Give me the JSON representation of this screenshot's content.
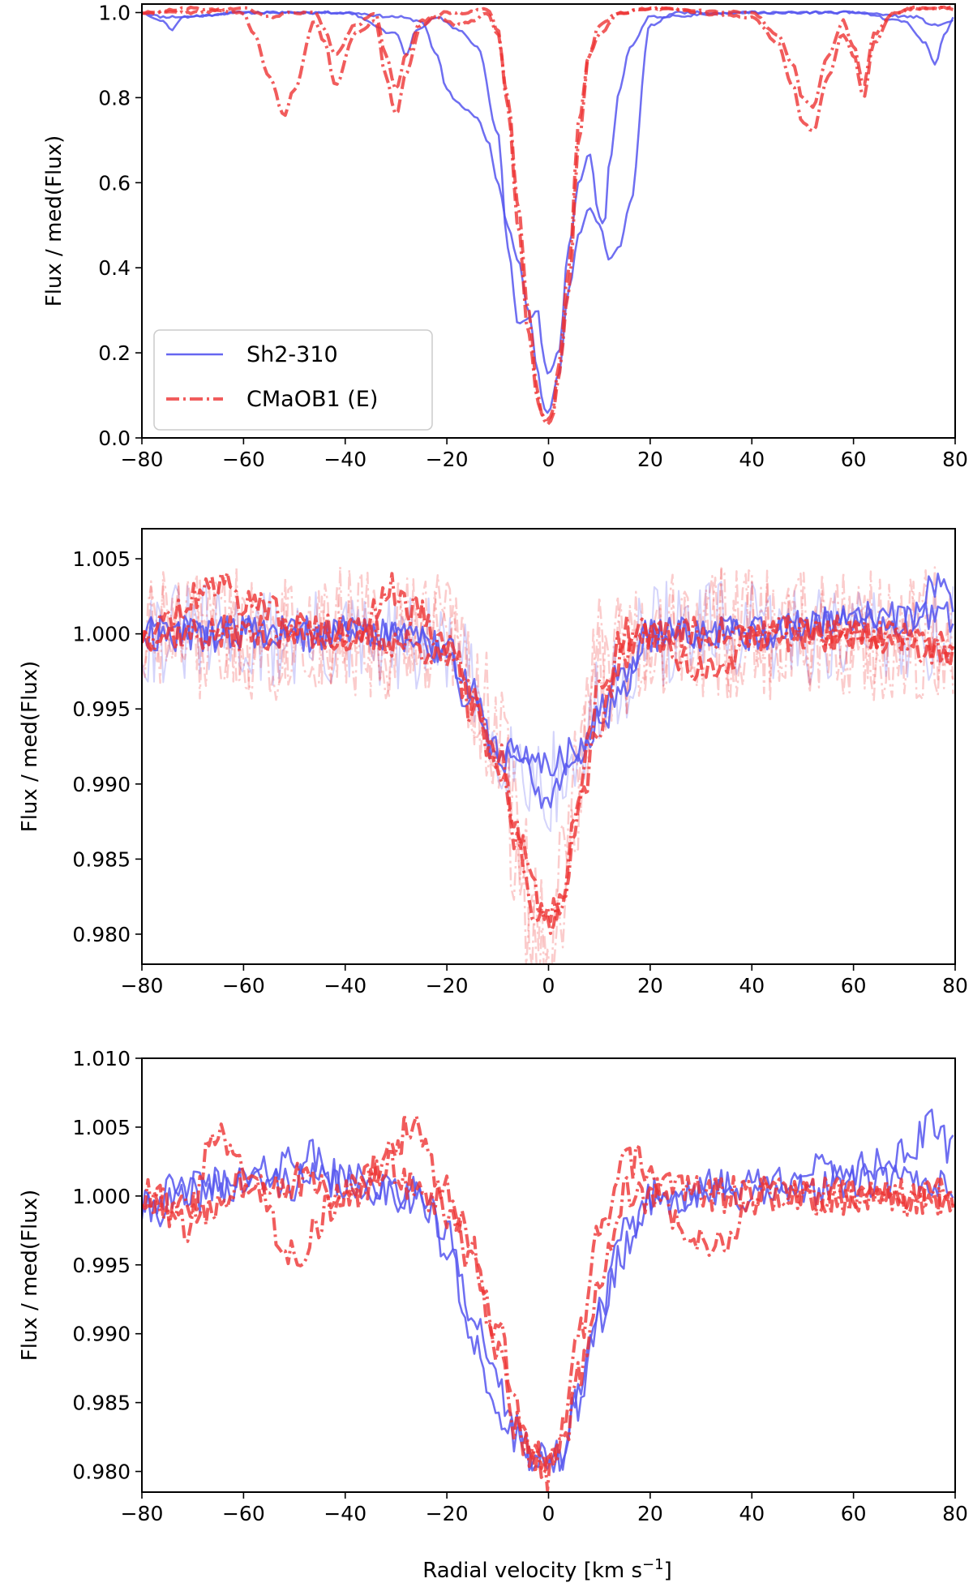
{
  "figure": {
    "xlabel_prefix": "Radial velocity [km s",
    "xlabel_sup": "−1",
    "xlabel_suffix": "]"
  },
  "colors": {
    "sh2_310": "#5555ee",
    "cmaob1": "#ee3333",
    "background": "#ffffff",
    "axes": "#000000"
  },
  "legend": {
    "location": "lower-left of top panel",
    "entries": [
      {
        "label": "Sh2-310",
        "style": "solid",
        "color": "#5555ee"
      },
      {
        "label": "CMaOB1 (E)",
        "style": "dash-dot",
        "color": "#ee3333"
      }
    ]
  },
  "chart_data": [
    {
      "type": "line",
      "panel": "top",
      "title": "",
      "xlabel": "",
      "ylabel": "Flux / med(Flux)",
      "xlim": [
        -80,
        80
      ],
      "ylim": [
        0.0,
        1.02
      ],
      "xticks": [
        -80,
        -60,
        -40,
        -20,
        0,
        20,
        40,
        60,
        80
      ],
      "xtick_labels": [
        "−80",
        "−60",
        "−40",
        "−20",
        "0",
        "20",
        "40",
        "60",
        "80"
      ],
      "yticks": [
        0.0,
        0.2,
        0.4,
        0.6,
        0.8,
        1.0
      ],
      "ytick_labels": [
        "0.0",
        "0.2",
        "0.4",
        "0.6",
        "0.8",
        "1.0"
      ],
      "grid": false,
      "legend": true,
      "series": [
        {
          "name": "Sh2-310",
          "color": "#5555ee",
          "style": "solid",
          "noise": 0.003,
          "seed": 11,
          "x": [
            -80,
            -76,
            -72,
            -60,
            -40,
            -30,
            -25,
            -22,
            -20,
            -18,
            -16,
            -14,
            -12,
            -10,
            -8,
            -6,
            -4,
            -2,
            -1,
            0,
            2,
            4,
            6,
            8,
            10,
            12,
            14,
            16,
            20,
            25,
            40,
            60,
            72,
            76,
            80
          ],
          "y": [
            1.0,
            0.99,
            0.99,
            1.0,
            1.0,
            0.99,
            0.98,
            0.9,
            0.82,
            0.79,
            0.77,
            0.75,
            0.7,
            0.6,
            0.5,
            0.42,
            0.3,
            0.15,
            0.07,
            0.06,
            0.15,
            0.35,
            0.48,
            0.54,
            0.5,
            0.42,
            0.45,
            0.55,
            0.97,
            1.0,
            1.0,
            1.0,
            0.99,
            0.97,
            0.98
          ]
        },
        {
          "name": "Sh2-310",
          "color": "#5555ee",
          "style": "solid",
          "noise": 0.003,
          "seed": 12,
          "x": [
            -80,
            -76,
            -74,
            -72,
            -60,
            -40,
            -30,
            -28,
            -26,
            -22,
            -18,
            -14,
            -10,
            -8,
            -6,
            -4,
            -2,
            -1,
            0,
            2,
            4,
            6,
            8,
            10,
            11,
            12,
            14,
            16,
            20,
            40,
            60,
            70,
            74,
            76,
            78,
            80
          ],
          "y": [
            1.0,
            0.98,
            0.96,
            0.99,
            1.0,
            1.0,
            0.95,
            0.9,
            0.96,
            0.99,
            0.96,
            0.92,
            0.72,
            0.45,
            0.27,
            0.28,
            0.3,
            0.18,
            0.15,
            0.2,
            0.45,
            0.6,
            0.67,
            0.52,
            0.5,
            0.65,
            0.82,
            0.92,
            0.99,
            1.0,
            1.0,
            0.98,
            0.93,
            0.88,
            0.95,
            0.99
          ]
        },
        {
          "name": "CMaOB1 (E)",
          "color": "#ee3333",
          "style": "dashdot",
          "noise": 0.003,
          "seed": 21,
          "x": [
            -80,
            -70,
            -60,
            -58,
            -55,
            -52,
            -50,
            -46,
            -44,
            -42,
            -38,
            -34,
            -32,
            -30,
            -28,
            -25,
            -22,
            -20,
            -18,
            -15,
            -12,
            -10,
            -8,
            -6,
            -4,
            -2,
            -1,
            0,
            1,
            2,
            4,
            6,
            8,
            10,
            14,
            20,
            40,
            45,
            48,
            50,
            52,
            55,
            58,
            60,
            62,
            64,
            68,
            72,
            80
          ],
          "y": [
            1.0,
            1.01,
            1.0,
            0.95,
            0.85,
            0.76,
            0.82,
            0.98,
            0.93,
            0.83,
            0.95,
            0.98,
            0.85,
            0.76,
            0.86,
            0.97,
            0.99,
            0.98,
            0.97,
            0.98,
            1.0,
            0.95,
            0.8,
            0.55,
            0.3,
            0.1,
            0.04,
            0.03,
            0.06,
            0.15,
            0.35,
            0.7,
            0.9,
            0.95,
            1.0,
            1.01,
            0.99,
            0.93,
            0.83,
            0.74,
            0.72,
            0.85,
            0.95,
            0.9,
            0.8,
            0.93,
            1.0,
            1.01,
            1.01
          ]
        },
        {
          "name": "CMaOB1 (E)",
          "color": "#ee3333",
          "style": "dashdot",
          "noise": 0.003,
          "seed": 22,
          "x": [
            -80,
            -70,
            -60,
            -55,
            -50,
            -46,
            -44,
            -42,
            -38,
            -34,
            -32,
            -30,
            -28,
            -25,
            -20,
            -16,
            -12,
            -10,
            -8,
            -6,
            -4,
            -2,
            -1,
            0,
            1,
            2,
            4,
            6,
            8,
            10,
            14,
            20,
            40,
            45,
            48,
            50,
            52,
            55,
            58,
            60,
            62,
            64,
            68,
            72,
            80
          ],
          "y": [
            1.0,
            1.0,
            1.01,
            0.99,
            1.0,
            1.0,
            0.96,
            0.9,
            0.97,
            1.0,
            0.9,
            0.82,
            0.9,
            0.98,
            1.0,
            1.0,
            1.01,
            0.96,
            0.78,
            0.5,
            0.25,
            0.08,
            0.05,
            0.04,
            0.07,
            0.18,
            0.4,
            0.75,
            0.9,
            0.97,
            1.0,
            1.01,
            1.0,
            0.95,
            0.88,
            0.8,
            0.78,
            0.9,
            0.98,
            0.92,
            0.83,
            0.95,
            1.0,
            1.01,
            1.01
          ]
        }
      ]
    },
    {
      "type": "line",
      "panel": "middle",
      "title": "",
      "xlabel": "",
      "ylabel": "Flux / med(Flux)",
      "xlim": [
        -80,
        80
      ],
      "ylim": [
        0.978,
        1.007
      ],
      "xticks": [
        -80,
        -60,
        -40,
        -20,
        0,
        20,
        40,
        60,
        80
      ],
      "xtick_labels": [
        "−80",
        "−60",
        "−40",
        "−20",
        "0",
        "20",
        "40",
        "60",
        "80"
      ],
      "yticks": [
        0.98,
        0.985,
        0.99,
        0.995,
        1.0,
        1.005
      ],
      "ytick_labels": [
        "0.980",
        "0.985",
        "0.990",
        "0.995",
        "1.000",
        "1.005"
      ],
      "grid": false,
      "legend": false,
      "series": [
        {
          "name": "Sh2-310",
          "color": "#5555ee",
          "style": "solid",
          "opacity": 0.25,
          "width": 2,
          "noise": 0.0035,
          "seed": 31,
          "x": [
            -80,
            -20,
            -10,
            -5,
            0,
            5,
            10,
            20,
            80
          ],
          "y": [
            1.0,
            0.999,
            0.993,
            0.991,
            0.99,
            0.991,
            0.995,
            1.0,
            1.0
          ]
        },
        {
          "name": "CMaOB1 (E)",
          "color": "#ee3333",
          "style": "dashdot",
          "opacity": 0.25,
          "width": 2.5,
          "noise": 0.0045,
          "seed": 32,
          "x": [
            -80,
            -20,
            -10,
            -6,
            -3,
            0,
            3,
            6,
            10,
            20,
            80
          ],
          "y": [
            1.0,
            1.0,
            0.993,
            0.985,
            0.979,
            0.979,
            0.983,
            0.99,
            0.998,
            1.0,
            1.0
          ]
        },
        {
          "name": "CMaOB1 (E)",
          "color": "#ee3333",
          "style": "dashdot",
          "opacity": 0.25,
          "width": 2.5,
          "noise": 0.0045,
          "seed": 33,
          "x": [
            -80,
            -20,
            -10,
            -6,
            -3,
            0,
            3,
            6,
            10,
            20,
            80
          ],
          "y": [
            1.0,
            1.0,
            0.994,
            0.987,
            0.981,
            0.98,
            0.984,
            0.991,
            0.998,
            1.0,
            1.0
          ]
        },
        {
          "name": "Sh2-310",
          "color": "#5555ee",
          "style": "solid",
          "noise": 0.0012,
          "seed": 34,
          "x": [
            -80,
            -30,
            -20,
            -15,
            -10,
            -5,
            0,
            5,
            10,
            15,
            20,
            40,
            60,
            70,
            76,
            80
          ],
          "y": [
            1.0,
            1.0,
            0.999,
            0.996,
            0.992,
            0.991,
            0.989,
            0.991,
            0.994,
            0.997,
            1.0,
            1.0,
            1.001,
            1.001,
            1.003,
            1.002
          ]
        },
        {
          "name": "Sh2-310",
          "color": "#5555ee",
          "style": "solid",
          "noise": 0.0012,
          "seed": 35,
          "x": [
            -80,
            -30,
            -20,
            -15,
            -10,
            -5,
            0,
            5,
            10,
            15,
            20,
            40,
            60,
            80
          ],
          "y": [
            1.0,
            1.0,
            0.999,
            0.995,
            0.992,
            0.992,
            0.991,
            0.992,
            0.995,
            0.998,
            1.0,
            1.0,
            1.001,
            1.001
          ]
        },
        {
          "name": "CMaOB1 (E)",
          "color": "#ee3333",
          "style": "dashdot",
          "noise": 0.0012,
          "seed": 36,
          "x": [
            -80,
            -66,
            -64,
            -60,
            -40,
            -30,
            -25,
            -20,
            -15,
            -10,
            -6,
            -3,
            0,
            3,
            6,
            10,
            15,
            20,
            28,
            34,
            40,
            60,
            80
          ],
          "y": [
            1.0,
            1.003,
            1.004,
            1.002,
            1.0,
            1.003,
            1.001,
            0.999,
            0.996,
            0.992,
            0.987,
            0.983,
            0.981,
            0.983,
            0.988,
            0.994,
            0.999,
            1.0,
            0.998,
            0.997,
            1.0,
            1.0,
            0.999
          ]
        },
        {
          "name": "CMaOB1 (E)",
          "color": "#ee3333",
          "style": "dashdot",
          "noise": 0.0012,
          "seed": 37,
          "x": [
            -80,
            -60,
            -40,
            -20,
            -15,
            -10,
            -6,
            -3,
            0,
            3,
            6,
            10,
            15,
            20,
            40,
            60,
            80
          ],
          "y": [
            1.0,
            1.0,
            1.0,
            0.999,
            0.995,
            0.991,
            0.986,
            0.982,
            0.98,
            0.983,
            0.99,
            0.996,
            1.0,
            1.0,
            1.0,
            1.0,
            0.999
          ]
        }
      ]
    },
    {
      "type": "line",
      "panel": "bottom",
      "title": "",
      "xlabel": "Radial velocity [km s−1]",
      "ylabel": "Flux / med(Flux)",
      "xlim": [
        -80,
        80
      ],
      "ylim": [
        0.9785,
        1.01
      ],
      "xticks": [
        -80,
        -60,
        -40,
        -20,
        0,
        20,
        40,
        60,
        80
      ],
      "xtick_labels": [
        "−80",
        "−60",
        "−40",
        "−20",
        "0",
        "20",
        "40",
        "60",
        "80"
      ],
      "yticks": [
        0.98,
        0.985,
        0.99,
        0.995,
        1.0,
        1.005,
        1.01
      ],
      "ytick_labels": [
        "0.980",
        "0.985",
        "0.990",
        "0.995",
        "1.000",
        "1.005",
        "1.010"
      ],
      "grid": false,
      "legend": false,
      "series": [
        {
          "name": "Sh2-310",
          "color": "#5555ee",
          "style": "solid",
          "noise": 0.0014,
          "seed": 41,
          "x": [
            -80,
            -60,
            -40,
            -25,
            -20,
            -15,
            -10,
            -6,
            -2,
            0,
            2,
            6,
            10,
            15,
            20,
            40,
            60,
            70,
            76,
            80
          ],
          "y": [
            0.999,
            1.001,
            1.001,
            1.0,
            0.997,
            0.992,
            0.986,
            0.983,
            0.981,
            0.98,
            0.981,
            0.986,
            0.991,
            0.996,
            1.0,
            1.001,
            1.002,
            1.003,
            1.005,
            1.003
          ]
        },
        {
          "name": "Sh2-310",
          "color": "#5555ee",
          "style": "solid",
          "noise": 0.0014,
          "seed": 42,
          "x": [
            -80,
            -60,
            -48,
            -40,
            -25,
            -20,
            -15,
            -10,
            -6,
            -2,
            0,
            2,
            6,
            10,
            15,
            20,
            40,
            60,
            80
          ],
          "y": [
            1.0,
            1.001,
            1.003,
            1.001,
            1.0,
            0.996,
            0.99,
            0.984,
            0.982,
            0.981,
            0.98,
            0.981,
            0.985,
            0.992,
            0.997,
            1.0,
            1.0,
            1.001,
            1.001
          ]
        },
        {
          "name": "CMaOB1 (E)",
          "color": "#ee3333",
          "style": "dashdot",
          "noise": 0.0014,
          "seed": 43,
          "x": [
            -80,
            -70,
            -66,
            -60,
            -50,
            -40,
            -30,
            -28,
            -20,
            -15,
            -10,
            -6,
            -3,
            0,
            3,
            6,
            10,
            15,
            18,
            20,
            40,
            60,
            80
          ],
          "y": [
            1.0,
            0.999,
            1.005,
            1.002,
            0.996,
            1.0,
            1.003,
            1.005,
            1.001,
            0.996,
            0.989,
            0.983,
            0.981,
            0.98,
            0.983,
            0.99,
            0.997,
            1.002,
            1.003,
            1.001,
            1.0,
            1.0,
            1.0
          ]
        },
        {
          "name": "CMaOB1 (E)",
          "color": "#ee3333",
          "style": "dashdot",
          "noise": 0.0014,
          "seed": 44,
          "x": [
            -80,
            -70,
            -60,
            -50,
            -40,
            -30,
            -25,
            -20,
            -15,
            -10,
            -6,
            -3,
            0,
            3,
            6,
            10,
            15,
            20,
            30,
            34,
            40,
            60,
            80
          ],
          "y": [
            1.0,
            0.998,
            1.001,
            1.001,
            1.0,
            1.002,
            1.0,
            0.999,
            0.995,
            0.99,
            0.984,
            0.981,
            0.98,
            0.982,
            0.987,
            0.994,
            1.0,
            1.0,
            0.997,
            0.996,
            1.0,
            1.0,
            1.0
          ]
        }
      ]
    }
  ]
}
